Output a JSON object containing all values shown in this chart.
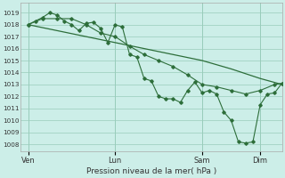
{
  "background_color": "#cceee8",
  "grid_color": "#99ccbb",
  "line_color": "#2d6e3a",
  "xlabel": "Pression niveau de la mer( hPa )",
  "yticks": [
    1008,
    1009,
    1010,
    1011,
    1012,
    1013,
    1014,
    1015,
    1016,
    1017,
    1018,
    1019
  ],
  "ylim": [
    1007.4,
    1019.8
  ],
  "xtick_labels": [
    "Ven",
    "Lun",
    "Sam",
    "Dim"
  ],
  "xtick_positions": [
    0,
    48,
    96,
    128
  ],
  "xlim": [
    -4,
    140
  ],
  "series_smooth_x": [
    0,
    16,
    32,
    48,
    64,
    80,
    96,
    112,
    128,
    140
  ],
  "series_smooth_y": [
    1018.0,
    1017.5,
    1017.0,
    1016.5,
    1016.0,
    1015.5,
    1015.0,
    1014.3,
    1013.5,
    1013.0
  ],
  "series_jagged_x": [
    0,
    4,
    8,
    12,
    16,
    20,
    24,
    28,
    32,
    36,
    40,
    44,
    48,
    52,
    56,
    60,
    64,
    68,
    72,
    76,
    80,
    84,
    88,
    92,
    96,
    100,
    104,
    108,
    112,
    116,
    120,
    124,
    128,
    132,
    136,
    140
  ],
  "series_jagged_y": [
    1018.0,
    1018.3,
    1018.6,
    1019.0,
    1018.8,
    1018.3,
    1018.0,
    1017.5,
    1018.1,
    1018.2,
    1017.7,
    1016.5,
    1018.0,
    1017.8,
    1015.5,
    1015.3,
    1013.5,
    1013.3,
    1012.0,
    1011.8,
    1011.8,
    1011.5,
    1012.5,
    1013.2,
    1012.3,
    1012.5,
    1012.2,
    1010.7,
    1010.0,
    1008.2,
    1008.1,
    1008.2,
    1011.3,
    1012.2,
    1012.3,
    1013.1
  ],
  "series_mid_x": [
    0,
    8,
    16,
    24,
    32,
    40,
    48,
    56,
    64,
    72,
    80,
    88,
    96,
    104,
    112,
    120,
    128,
    136,
    140
  ],
  "series_mid_y": [
    1018.0,
    1018.5,
    1018.5,
    1018.5,
    1018.0,
    1017.3,
    1017.0,
    1016.2,
    1015.5,
    1015.0,
    1014.5,
    1013.8,
    1013.0,
    1012.8,
    1012.5,
    1012.2,
    1012.5,
    1013.0,
    1013.1
  ]
}
